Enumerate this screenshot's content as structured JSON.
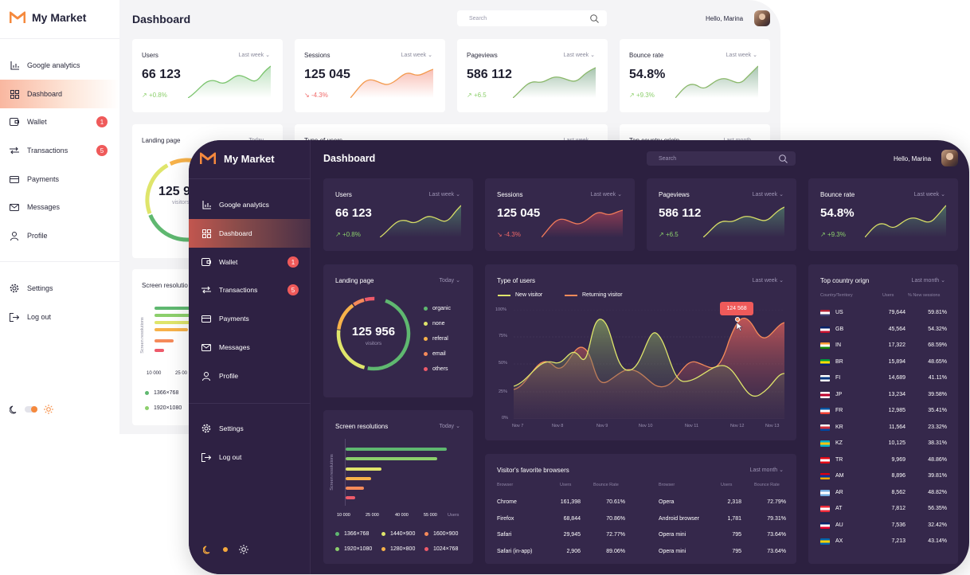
{
  "app": {
    "name": "My Market",
    "page_title": "Dashboard",
    "greeting": "Hello, Marina"
  },
  "search": {
    "placeholder": "Search"
  },
  "nav": {
    "items": [
      {
        "label": "Google analytics",
        "icon": "bar-chart-icon"
      },
      {
        "label": "Dashboard",
        "icon": "grid-icon",
        "active": true
      },
      {
        "label": "Wallet",
        "icon": "wallet-icon",
        "badge": "1"
      },
      {
        "label": "Transactions",
        "icon": "transfer-icon",
        "badge": "5"
      },
      {
        "label": "Payments",
        "icon": "card-icon"
      },
      {
        "label": "Messages",
        "icon": "mail-icon"
      },
      {
        "label": "Profile",
        "icon": "user-icon"
      }
    ],
    "settings": "Settings",
    "logout": "Log out"
  },
  "stats": [
    {
      "label": "Users",
      "period": "Last week",
      "value": "66 123",
      "change": "+0.8%",
      "trend": "up"
    },
    {
      "label": "Sessions",
      "period": "Last week",
      "value": "125 045",
      "change": "-4.3%",
      "trend": "down"
    },
    {
      "label": "Pageviews",
      "period": "Last week",
      "value": "586 112",
      "change": "+6.5",
      "trend": "up"
    },
    {
      "label": "Bounce rate",
      "period": "Last week",
      "value": "54.8%",
      "change": "+9.3%",
      "trend": "up"
    }
  ],
  "landing": {
    "title": "Landing page",
    "period": "Today",
    "value": "125 956",
    "sublabel": "visitors",
    "legend": [
      {
        "label": "organic",
        "color": "#5fb870"
      },
      {
        "label": "none",
        "color": "#dfe56b"
      },
      {
        "label": "referal",
        "color": "#f7b24a"
      },
      {
        "label": "email",
        "color": "#f58a5a"
      },
      {
        "label": "others",
        "color": "#ee5a6a"
      }
    ]
  },
  "light_partial": {
    "landing_title": "Landing page",
    "landing_period": "Today",
    "landing_value": "125 9",
    "landing_sub": "visitors",
    "res_title": "Screen resolutio",
    "res_axis": "Screen resolutions",
    "ticks": [
      "10 000",
      "25 00"
    ],
    "legend": [
      "1366×768",
      "1920×1080"
    ],
    "type_title": "Type of users",
    "type_period": "Last week",
    "country_title": "Top country origin",
    "country_period": "Last month"
  },
  "type_users": {
    "title": "Type of users",
    "period": "Last week",
    "legend": [
      "New visitor",
      "Returning visitor"
    ],
    "tooltip": "124 568",
    "y_ticks": [
      "100%",
      "75%",
      "50%",
      "25%",
      "0%"
    ],
    "x_ticks": [
      "Nov 7",
      "Nov 8",
      "Nov 9",
      "Nov 10",
      "Nov 11",
      "Nov 12",
      "Nov 13"
    ]
  },
  "resolutions": {
    "title": "Screen resolutions",
    "period": "Today",
    "axis_label": "Screen resolutions",
    "ticks": [
      "10 000",
      "25 000",
      "40 000",
      "55 000",
      "Users"
    ],
    "legend": [
      {
        "label": "1366×768",
        "color": "#5fb870"
      },
      {
        "label": "1440×900",
        "color": "#dfe56b"
      },
      {
        "label": "1600×900",
        "color": "#f58a5a"
      },
      {
        "label": "1920×1080",
        "color": "#8ccf6c"
      },
      {
        "label": "1280×800",
        "color": "#f7b24a"
      },
      {
        "label": "1024×768",
        "color": "#ee5a6a"
      }
    ]
  },
  "browsers": {
    "title": "Visitor's favorite browsers",
    "period": "Last month",
    "headers": [
      "Browser",
      "Users",
      "Bounce Rate"
    ],
    "left": [
      {
        "name": "Chrome",
        "users": "161,398",
        "rate": "70.61%"
      },
      {
        "name": "Firefox",
        "users": "68,844",
        "rate": "70.86%"
      },
      {
        "name": "Safari",
        "users": "29,945",
        "rate": "72.77%"
      },
      {
        "name": "Safari (in-app)",
        "users": "2,906",
        "rate": "89.06%"
      }
    ],
    "right": [
      {
        "name": "Opera",
        "users": "2,318",
        "rate": "72.79%"
      },
      {
        "name": "Android browser",
        "users": "1,781",
        "rate": "79.31%"
      },
      {
        "name": "Opera mini",
        "users": "795",
        "rate": "73.64%"
      },
      {
        "name": "Opera mini",
        "users": "795",
        "rate": "73.64%"
      }
    ]
  },
  "countries": {
    "title": "Top country orign",
    "period": "Last month",
    "headers": [
      "Country/Territory",
      "Users",
      "% New sessions"
    ],
    "rows": [
      {
        "code": "US",
        "users": "79,644",
        "pct": "59.81%",
        "colors": [
          "#b22234",
          "#ffffff",
          "#3c3b6e"
        ]
      },
      {
        "code": "GB",
        "users": "45,564",
        "pct": "54.32%",
        "colors": [
          "#012169",
          "#ffffff",
          "#c8102e"
        ]
      },
      {
        "code": "IN",
        "users": "17,322",
        "pct": "68.59%",
        "colors": [
          "#ff9933",
          "#ffffff",
          "#138808"
        ]
      },
      {
        "code": "BR",
        "users": "15,894",
        "pct": "48.65%",
        "colors": [
          "#009c3b",
          "#ffdf00",
          "#002776"
        ]
      },
      {
        "code": "FI",
        "users": "14,689",
        "pct": "41.11%",
        "colors": [
          "#ffffff",
          "#003580",
          "#ffffff"
        ]
      },
      {
        "code": "JP",
        "users": "13,234",
        "pct": "39.58%",
        "colors": [
          "#ffffff",
          "#bc002d",
          "#ffffff"
        ]
      },
      {
        "code": "FR",
        "users": "12,985",
        "pct": "35.41%",
        "colors": [
          "#0055a4",
          "#ffffff",
          "#ef4135"
        ]
      },
      {
        "code": "KR",
        "users": "11,564",
        "pct": "23.32%",
        "colors": [
          "#ffffff",
          "#cd2e3a",
          "#0047a0"
        ]
      },
      {
        "code": "KZ",
        "users": "10,125",
        "pct": "38.31%",
        "colors": [
          "#00afca",
          "#fec50c",
          "#00afca"
        ]
      },
      {
        "code": "TR",
        "users": "9,969",
        "pct": "48.86%",
        "colors": [
          "#e30a17",
          "#ffffff",
          "#e30a17"
        ]
      },
      {
        "code": "AM",
        "users": "8,896",
        "pct": "39.81%",
        "colors": [
          "#d90012",
          "#0033a0",
          "#f2a800"
        ]
      },
      {
        "code": "AR",
        "users": "8,562",
        "pct": "48.82%",
        "colors": [
          "#74acdf",
          "#ffffff",
          "#74acdf"
        ]
      },
      {
        "code": "AT",
        "users": "7,812",
        "pct": "56.35%",
        "colors": [
          "#ed2939",
          "#ffffff",
          "#ed2939"
        ]
      },
      {
        "code": "AU",
        "users": "7,536",
        "pct": "32.42%",
        "colors": [
          "#012169",
          "#ffffff",
          "#e4002b"
        ]
      },
      {
        "code": "AX",
        "users": "7,213",
        "pct": "43.14%",
        "colors": [
          "#0064ad",
          "#ffd300",
          "#0064ad"
        ]
      }
    ]
  },
  "colors": {
    "accent": "#f5893d",
    "danger": "#ef5a5a",
    "positive": "#8ccf6c",
    "dark_bg": "#2c2040",
    "dark_card": "#35284b"
  }
}
